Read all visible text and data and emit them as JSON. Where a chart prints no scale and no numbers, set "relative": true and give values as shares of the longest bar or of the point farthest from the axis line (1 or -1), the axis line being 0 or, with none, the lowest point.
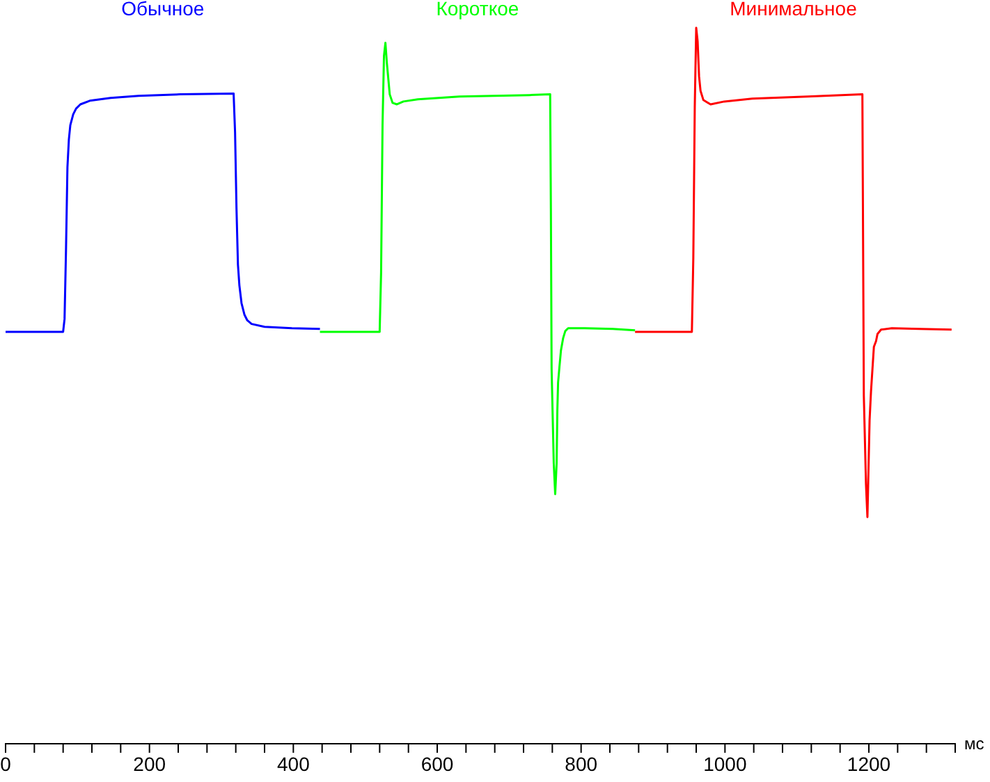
{
  "chart_data": {
    "type": "line",
    "relative": true,
    "xlabel": "мс",
    "xlim": [
      0,
      1320
    ],
    "xticks": [
      0,
      {
        "value": 40,
        "label": null
      },
      {
        "value": 80,
        "label": null
      },
      {
        "value": 120,
        "label": null
      },
      {
        "value": 160,
        "label": null
      },
      200,
      {
        "value": 240,
        "label": null
      },
      {
        "value": 280,
        "label": null
      },
      {
        "value": 320,
        "label": null
      },
      {
        "value": 360,
        "label": null
      },
      400,
      {
        "value": 440,
        "label": null
      },
      {
        "value": 480,
        "label": null
      },
      {
        "value": 520,
        "label": null
      },
      {
        "value": 560,
        "label": null
      },
      600,
      {
        "value": 640,
        "label": null
      },
      {
        "value": 680,
        "label": null
      },
      {
        "value": 720,
        "label": null
      },
      {
        "value": 760,
        "label": null
      },
      800,
      {
        "value": 840,
        "label": null
      },
      {
        "value": 880,
        "label": null
      },
      {
        "value": 920,
        "label": null
      },
      {
        "value": 960,
        "label": null
      },
      1000,
      {
        "value": 1040,
        "label": null
      },
      {
        "value": 1080,
        "label": null
      },
      {
        "value": 1120,
        "label": null
      },
      {
        "value": 1160,
        "label": null
      },
      1200,
      {
        "value": 1240,
        "label": null
      },
      {
        "value": 1280,
        "label": null
      },
      {
        "value": 1320,
        "label": null
      }
    ],
    "grid": false,
    "marker": "none",
    "line_style": "solid",
    "series": [
      {
        "name": "Обычное",
        "color": "#0000ff",
        "x": [
          0,
          80,
          82,
          84,
          86,
          88,
          90,
          94,
          98,
          104,
          117,
          146,
          185,
          243,
          317,
          319,
          321,
          323,
          325,
          328,
          332,
          336,
          342,
          360,
          398,
          437
        ],
        "values": [
          0.575,
          0.575,
          0.593,
          0.689,
          0.805,
          0.844,
          0.864,
          0.879,
          0.887,
          0.893,
          0.898,
          0.902,
          0.905,
          0.907,
          0.908,
          0.854,
          0.747,
          0.669,
          0.64,
          0.615,
          0.599,
          0.591,
          0.586,
          0.582,
          0.58,
          0.579
        ]
      },
      {
        "name": "Короткое",
        "color": "#00ff00",
        "x": [
          437,
          520,
          522,
          524,
          526,
          528,
          530,
          534,
          538,
          544,
          553,
          573,
          631,
          728,
          757,
          758,
          759,
          762,
          764,
          766,
          767,
          768,
          770,
          772,
          775,
          778,
          782,
          805,
          844,
          875
        ],
        "values": [
          0.575,
          0.575,
          0.658,
          0.864,
          0.961,
          0.979,
          0.951,
          0.907,
          0.895,
          0.893,
          0.897,
          0.9,
          0.904,
          0.906,
          0.907,
          0.747,
          0.523,
          0.391,
          0.348,
          0.391,
          0.465,
          0.504,
          0.527,
          0.549,
          0.566,
          0.576,
          0.58,
          0.58,
          0.579,
          0.577
        ]
      },
      {
        "name": "Минимальное",
        "color": "#ff0000",
        "x": [
          875,
          954,
          956,
          958,
          960,
          962,
          964,
          966,
          970,
          980,
          999,
          1038,
          1115,
          1191,
          1193,
          1196,
          1198,
          1199,
          1201,
          1203,
          1205,
          1207,
          1210,
          1212,
          1217,
          1232,
          1270,
          1315
        ],
        "values": [
          0.575,
          0.575,
          0.679,
          0.889,
          1.0,
          0.981,
          0.932,
          0.912,
          0.899,
          0.893,
          0.897,
          0.901,
          0.904,
          0.907,
          0.486,
          0.362,
          0.316,
          0.36,
          0.451,
          0.492,
          0.523,
          0.554,
          0.562,
          0.572,
          0.578,
          0.58,
          0.579,
          0.578
        ]
      }
    ]
  }
}
